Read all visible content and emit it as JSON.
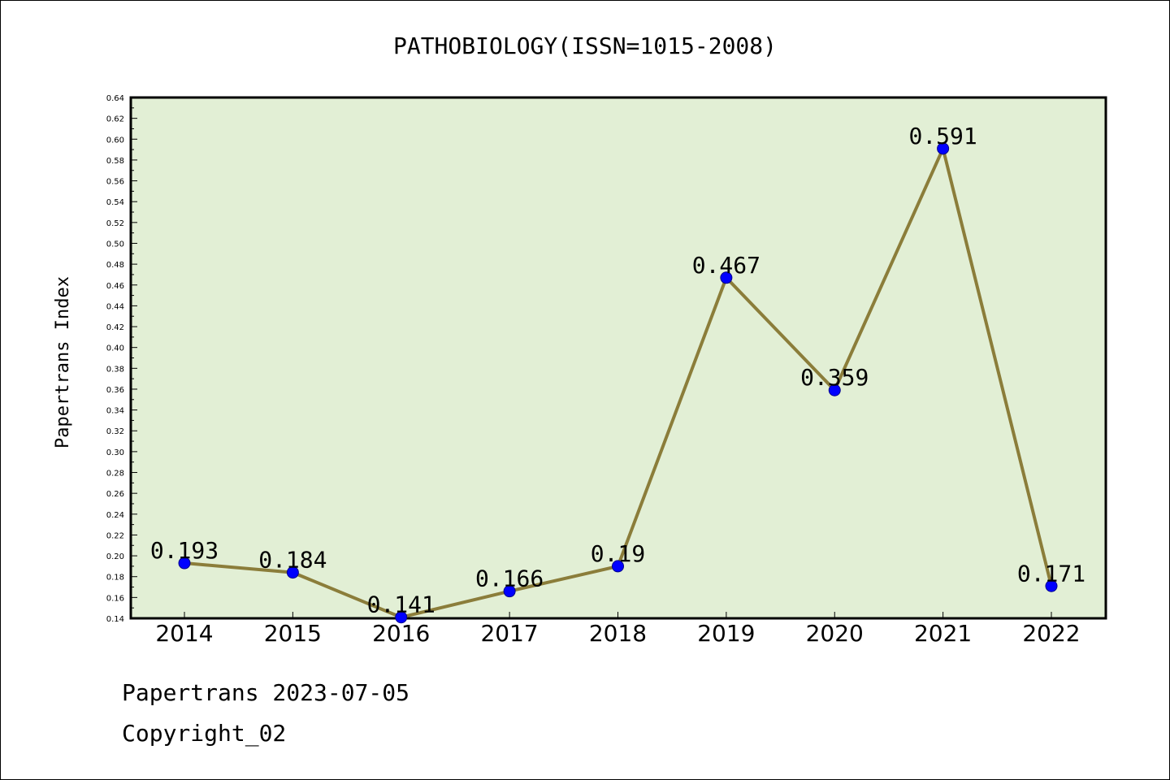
{
  "chart_data": {
    "type": "line",
    "title": "PATHOBIOLOGY(ISSN=1015-2008)",
    "xlabel": "",
    "ylabel": "Papertrans Index",
    "categories": [
      "2014",
      "2015",
      "2016",
      "2017",
      "2018",
      "2019",
      "2020",
      "2021",
      "2022"
    ],
    "series": [
      {
        "values": [
          0.193,
          0.184,
          0.141,
          0.166,
          0.19,
          0.467,
          0.359,
          0.591,
          0.171
        ],
        "labels": [
          "0.193",
          "0.184",
          "0.141",
          "0.166",
          "0.19",
          "0.467",
          "0.359",
          "0.591",
          "0.171"
        ]
      }
    ],
    "ylim": [
      0.14,
      0.64
    ],
    "yticks": [
      "0.14",
      "0.16",
      "0.18",
      "0.20",
      "0.22",
      "0.24",
      "0.26",
      "0.28",
      "0.30",
      "0.32",
      "0.34",
      "0.36",
      "0.38",
      "0.40",
      "0.42",
      "0.44",
      "0.46",
      "0.48",
      "0.50",
      "0.52",
      "0.54",
      "0.56",
      "0.58",
      "0.60",
      "0.62",
      "0.64"
    ],
    "grid": false,
    "colors": {
      "plot_background": "#e2efd5",
      "line": "#8b7d3a",
      "marker": "#0000ff"
    }
  },
  "footer": {
    "line1": "Papertrans 2023-07-05",
    "line2": "Copyright_02"
  }
}
